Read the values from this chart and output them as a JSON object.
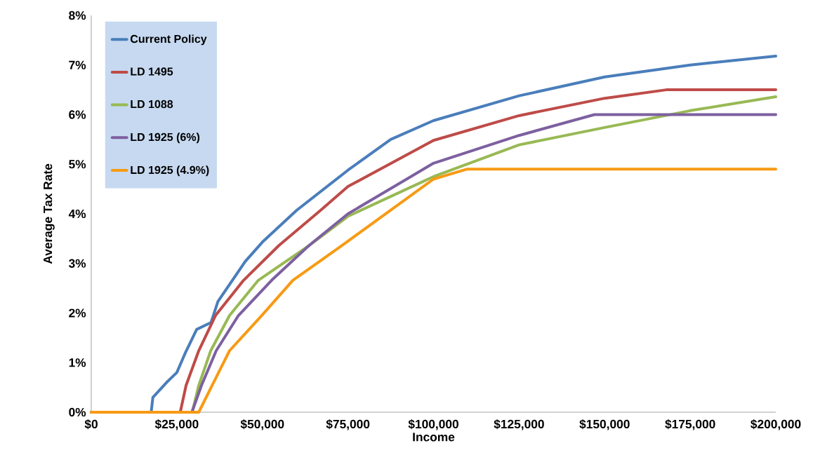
{
  "chart_data": {
    "type": "line",
    "xlabel": "Income",
    "ylabel": "Average Tax Rate",
    "legend": "top left",
    "xlim": [
      0,
      200000
    ],
    "ylim": [
      0,
      8
    ],
    "xticks": [
      {
        "value": 0,
        "label": "$0"
      },
      {
        "value": 25000,
        "label": "$25,000"
      },
      {
        "value": 50000,
        "label": "$50,000"
      },
      {
        "value": 75000,
        "label": "$75,000"
      },
      {
        "value": 100000,
        "label": "$100,000"
      },
      {
        "value": 125000,
        "label": "$125,000"
      },
      {
        "value": 150000,
        "label": "$150,000"
      },
      {
        "value": 175000,
        "label": "$175,000"
      },
      {
        "value": 200000,
        "label": "$200,000"
      }
    ],
    "yticks": [
      {
        "value": 0,
        "label": "0%"
      },
      {
        "value": 1,
        "label": "1%"
      },
      {
        "value": 2,
        "label": "2%"
      },
      {
        "value": 3,
        "label": "3%"
      },
      {
        "value": 4,
        "label": "4%"
      },
      {
        "value": 5,
        "label": "5%"
      },
      {
        "value": 6,
        "label": "6%"
      },
      {
        "value": 7,
        "label": "7%"
      },
      {
        "value": 8,
        "label": "8%"
      }
    ],
    "series": [
      {
        "name": "Current Policy",
        "color": "#4a7ebb",
        "x": [
          0,
          17500,
          18000,
          22000,
          25000,
          27500,
          30800,
          35000,
          37000,
          45000,
          50000,
          60000,
          75000,
          87500,
          100000,
          125000,
          150000,
          175000,
          200000
        ],
        "values": [
          0,
          0,
          0.3,
          0.6,
          0.8,
          1.2,
          1.67,
          1.81,
          2.23,
          3.04,
          3.43,
          4.07,
          4.88,
          5.5,
          5.88,
          6.38,
          6.76,
          7.0,
          7.18
        ]
      },
      {
        "name": "LD 1495",
        "color": "#be4b48",
        "x": [
          0,
          26000,
          27700,
          31400,
          36300,
          44500,
          54800,
          67000,
          75000,
          100000,
          125000,
          150000,
          168000,
          200000
        ],
        "values": [
          0,
          0,
          0.54,
          1.24,
          1.95,
          2.66,
          3.36,
          4.07,
          4.55,
          5.48,
          5.98,
          6.33,
          6.5,
          6.5
        ]
      },
      {
        "name": "LD 1088",
        "color": "#98b954",
        "x": [
          0,
          29500,
          31400,
          34900,
          40400,
          48800,
          63600,
          75000,
          100000,
          125000,
          150000,
          175000,
          200000
        ],
        "values": [
          0,
          0,
          0.54,
          1.24,
          1.95,
          2.66,
          3.36,
          3.95,
          4.75,
          5.39,
          5.74,
          6.08,
          6.36
        ]
      },
      {
        "name": "LD 1925 (6%)",
        "color": "#7d60a0",
        "x": [
          0,
          29400,
          32200,
          36500,
          43000,
          52700,
          63600,
          75000,
          100000,
          125000,
          147000,
          200000
        ],
        "values": [
          0,
          0,
          0.54,
          1.24,
          1.95,
          2.66,
          3.36,
          4.0,
          5.02,
          5.58,
          6.0,
          6.0
        ]
      },
      {
        "name": "LD 1925 (4.9%)",
        "color": "#f79a13",
        "x": [
          0,
          31400,
          35300,
          40400,
          49800,
          58900,
          73200,
          100000,
          109700,
          200000
        ],
        "values": [
          0,
          0,
          0.54,
          1.24,
          1.95,
          2.66,
          3.36,
          4.7,
          4.9,
          4.9
        ]
      }
    ]
  }
}
